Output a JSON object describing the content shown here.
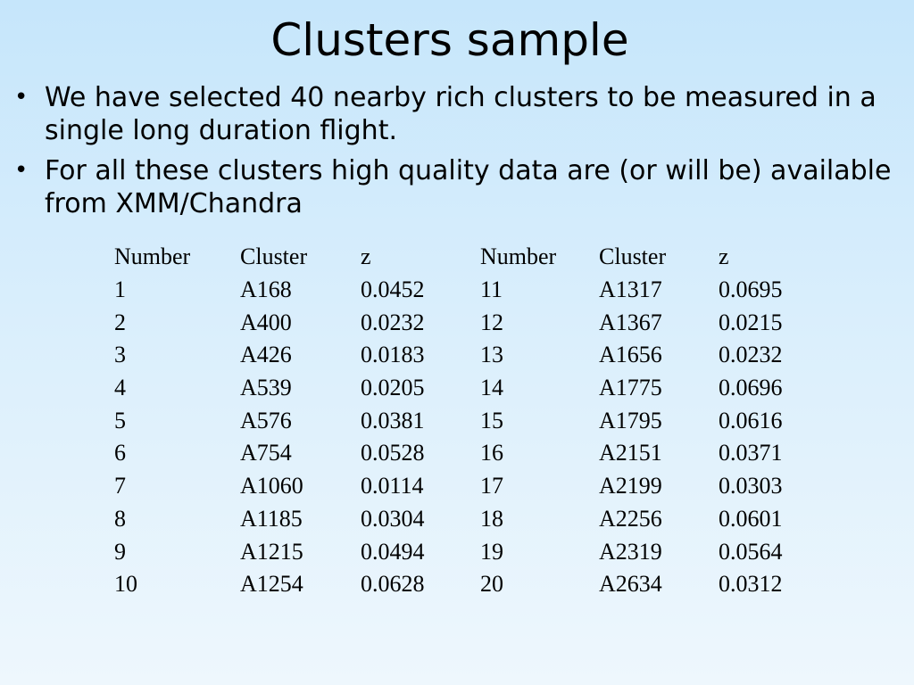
{
  "slide": {
    "title": "Clusters sample",
    "bullets": [
      "We have selected 40 nearby rich clusters to be measured in a single long duration flight.",
      "For all these clusters high quality data are (or will be) available from XMM/Chandra"
    ],
    "bullet_glyph": "•"
  },
  "table": {
    "headers": [
      "Number",
      "Cluster",
      "z",
      "Number",
      "Cluster",
      "z"
    ],
    "rows": [
      [
        "1",
        "A168",
        "0.0452",
        "11",
        "A1317",
        "0.0695"
      ],
      [
        "2",
        "A400",
        "0.0232",
        "12",
        "A1367",
        "0.0215"
      ],
      [
        "3",
        "A426",
        "0.0183",
        "13",
        "A1656",
        "0.0232"
      ],
      [
        "4",
        "A539",
        "0.0205",
        "14",
        "A1775",
        "0.0696"
      ],
      [
        "5",
        "A576",
        "0.0381",
        "15",
        "A1795",
        "0.0616"
      ],
      [
        "6",
        "A754",
        "0.0528",
        "16",
        "A2151",
        "0.0371"
      ],
      [
        "7",
        "A1060",
        "0.0114",
        "17",
        "A2199",
        "0.0303"
      ],
      [
        "8",
        "A1185",
        "0.0304",
        "18",
        "A2256",
        "0.0601"
      ],
      [
        "9",
        "A1215",
        "0.0494",
        "19",
        "A2319",
        "0.0564"
      ],
      [
        "10",
        "A1254",
        "0.0628",
        "20",
        "A2634",
        "0.0312"
      ]
    ]
  },
  "colors": {
    "background_top": "#c6e6fb",
    "background_bottom": "#eef7fd",
    "text": "#000000"
  }
}
